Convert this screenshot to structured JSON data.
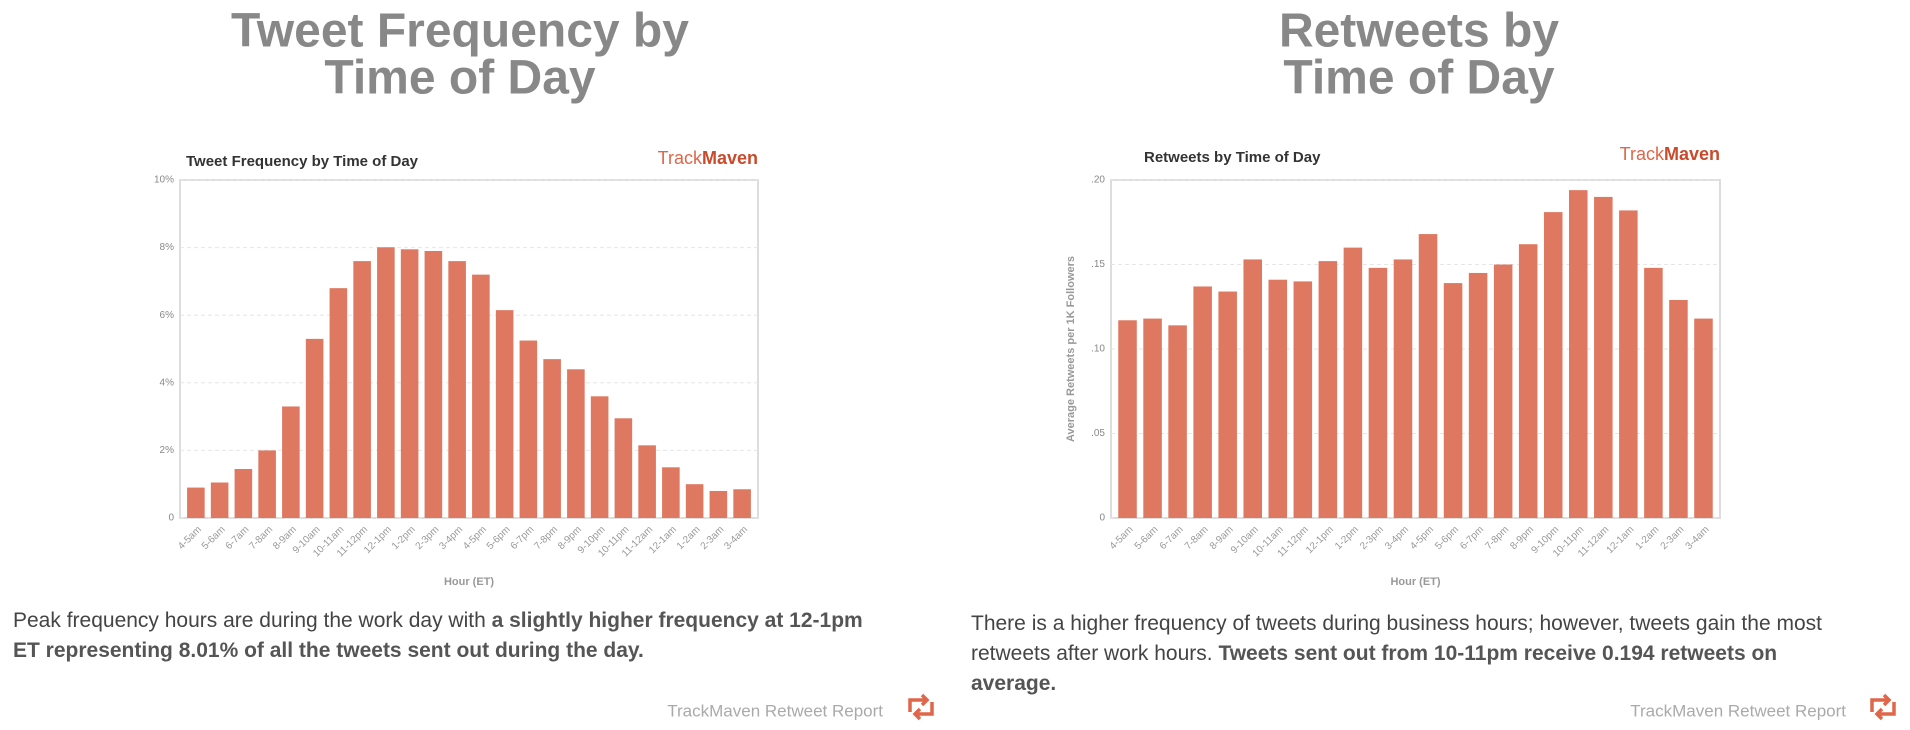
{
  "panels": [
    {
      "heading": [
        "Tweet Frequency by",
        "Time of Day"
      ],
      "caption": [
        "Peak frequency hours are during the work day with ",
        "a slightly higher frequency at 12-1pm ET representing 8.01% of all the tweets sent out during the day."
      ],
      "footer": "TrackMaven Retweet Report"
    },
    {
      "heading": [
        "Retweets by",
        "Time of Day"
      ],
      "caption": [
        "There is a higher frequency of tweets during business hours; however, tweets gain the most retweets after work hours. ",
        "Tweets sent out from 10-11pm receive 0.194 retweets on average."
      ],
      "footer": "TrackMaven Retweet Report"
    }
  ],
  "chart_data": [
    {
      "type": "bar",
      "title": "Tweet Frequency by Time of Day",
      "logo": [
        "Track",
        "Maven"
      ],
      "x_label": "Hour (ET)",
      "color": "#de7860",
      "grid": true,
      "categories": [
        "4-5am",
        "5-6am",
        "6-7am",
        "7-8am",
        "8-9am",
        "9-10am",
        "10-11am",
        "11-12pm",
        "12-1pm",
        "1-2pm",
        "2-3pm",
        "3-4pm",
        "4-5pm",
        "5-6pm",
        "6-7pm",
        "7-8pm",
        "8-9pm",
        "9-10pm",
        "10-11pm",
        "11-12am",
        "12-1am",
        "1-2am",
        "2-3am",
        "3-4am"
      ],
      "values": [
        0.9,
        1.05,
        1.45,
        2.0,
        3.3,
        5.3,
        6.8,
        7.6,
        8.01,
        7.95,
        7.9,
        7.6,
        7.2,
        6.15,
        5.25,
        4.7,
        4.4,
        3.6,
        2.95,
        2.15,
        1.5,
        1.0,
        0.8,
        0.85
      ],
      "ylim": [
        0,
        10
      ],
      "yticks": [
        0,
        {
          "value": 2,
          "label": "2%"
        },
        {
          "value": 4,
          "label": "4%"
        },
        {
          "value": 6,
          "label": "6%"
        },
        {
          "value": 8,
          "label": "8%"
        },
        {
          "value": 10,
          "label": "10%"
        }
      ]
    },
    {
      "type": "bar",
      "title": "Retweets by Time of Day",
      "logo": [
        "Track",
        "Maven"
      ],
      "x_label": "Hour (ET)",
      "y_label": "Average Retweets per 1K Followers",
      "color": "#de7860",
      "grid": true,
      "categories": [
        "4-5am",
        "5-6am",
        "6-7am",
        "7-8am",
        "8-9am",
        "9-10am",
        "10-11am",
        "11-12pm",
        "12-1pm",
        "1-2pm",
        "2-3pm",
        "3-4pm",
        "4-5pm",
        "5-6pm",
        "6-7pm",
        "7-8pm",
        "8-9pm",
        "9-10pm",
        "10-11pm",
        "11-12am",
        "12-1am",
        "1-2am",
        "2-3am",
        "3-4am"
      ],
      "values": [
        0.117,
        0.118,
        0.114,
        0.137,
        0.134,
        0.153,
        0.141,
        0.14,
        0.152,
        0.16,
        0.148,
        0.153,
        0.168,
        0.139,
        0.145,
        0.15,
        0.162,
        0.181,
        0.194,
        0.19,
        0.182,
        0.148,
        0.129,
        0.118
      ],
      "ylim": [
        0,
        0.2
      ],
      "yticks": [
        0,
        {
          "value": 0.05,
          "label": ".05"
        },
        {
          "value": 0.1,
          "label": ".10"
        },
        {
          "value": 0.15,
          "label": ".15"
        },
        {
          "value": 0.2,
          "label": ".20"
        }
      ]
    }
  ]
}
